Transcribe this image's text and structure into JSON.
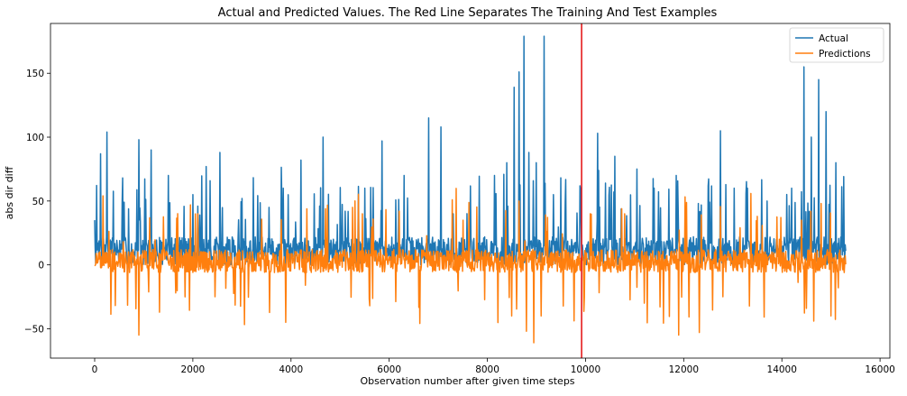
{
  "chart_data": {
    "type": "line",
    "title": "Actual and Predicted Values. The Red Line Separates The Training And Test Examples",
    "xlabel": "Observation number after given time steps",
    "ylabel": "abs dir diff",
    "xlim": [
      -900,
      16200
    ],
    "ylim": [
      -73,
      189
    ],
    "xticks": [
      {
        "value": 0,
        "label": "0"
      },
      {
        "value": 2000,
        "label": "2000"
      },
      {
        "value": 4000,
        "label": "4000"
      },
      {
        "value": 6000,
        "label": "6000"
      },
      {
        "value": 8000,
        "label": "8000"
      },
      {
        "value": 10000,
        "label": "10000"
      },
      {
        "value": 12000,
        "label": "12000"
      },
      {
        "value": 14000,
        "label": "14000"
      },
      {
        "value": 16000,
        "label": "16000"
      }
    ],
    "yticks": [
      {
        "value": -50,
        "label": "−50"
      },
      {
        "value": 0,
        "label": "0"
      },
      {
        "value": 50,
        "label": "50"
      },
      {
        "value": 100,
        "label": "100"
      },
      {
        "value": 150,
        "label": "150"
      }
    ],
    "grid": false,
    "legend_position": "top-right",
    "split_line": {
      "x": 9920,
      "color": "#e41a1c"
    },
    "series": [
      {
        "name": "Actual",
        "color": "#1f77b4",
        "x_range": [
          0,
          15300
        ],
        "n_points": 1530,
        "baseline_range": [
          0,
          22
        ],
        "peaks": [
          {
            "x": 0,
            "y": 35
          },
          {
            "x": 120,
            "y": 87
          },
          {
            "x": 250,
            "y": 104
          },
          {
            "x": 560,
            "y": 50
          },
          {
            "x": 900,
            "y": 98
          },
          {
            "x": 1150,
            "y": 90
          },
          {
            "x": 1500,
            "y": 70
          },
          {
            "x": 2000,
            "y": 55
          },
          {
            "x": 2550,
            "y": 88
          },
          {
            "x": 3000,
            "y": 52
          },
          {
            "x": 3550,
            "y": 45
          },
          {
            "x": 4200,
            "y": 82
          },
          {
            "x": 4650,
            "y": 100
          },
          {
            "x": 5100,
            "y": 42
          },
          {
            "x": 5500,
            "y": 60
          },
          {
            "x": 5850,
            "y": 97
          },
          {
            "x": 6300,
            "y": 70
          },
          {
            "x": 6800,
            "y": 115
          },
          {
            "x": 7050,
            "y": 108
          },
          {
            "x": 7300,
            "y": 40
          },
          {
            "x": 8150,
            "y": 70
          },
          {
            "x": 8400,
            "y": 80
          },
          {
            "x": 8550,
            "y": 139
          },
          {
            "x": 8650,
            "y": 151
          },
          {
            "x": 8750,
            "y": 179
          },
          {
            "x": 8850,
            "y": 88
          },
          {
            "x": 9000,
            "y": 80
          },
          {
            "x": 9160,
            "y": 179
          },
          {
            "x": 9350,
            "y": 55
          },
          {
            "x": 9900,
            "y": 60
          },
          {
            "x": 10250,
            "y": 103
          },
          {
            "x": 10600,
            "y": 85
          },
          {
            "x": 11050,
            "y": 75
          },
          {
            "x": 11400,
            "y": 60
          },
          {
            "x": 11850,
            "y": 70
          },
          {
            "x": 12300,
            "y": 48
          },
          {
            "x": 12750,
            "y": 105
          },
          {
            "x": 13300,
            "y": 60
          },
          {
            "x": 13700,
            "y": 50
          },
          {
            "x": 14200,
            "y": 60
          },
          {
            "x": 14450,
            "y": 155
          },
          {
            "x": 14600,
            "y": 100
          },
          {
            "x": 14750,
            "y": 145
          },
          {
            "x": 14900,
            "y": 120
          },
          {
            "x": 15100,
            "y": 80
          }
        ]
      },
      {
        "name": "Predictions",
        "color": "#ff7f0e",
        "x_range": [
          0,
          15300
        ],
        "n_points": 1530,
        "baseline_range": [
          -6,
          12
        ],
        "peaks": [
          {
            "x": 900,
            "y": -55
          },
          {
            "x": 1950,
            "y": 47
          },
          {
            "x": 1650,
            "y": -22
          },
          {
            "x": 2100,
            "y": 40
          },
          {
            "x": 2450,
            "y": -25
          },
          {
            "x": 4700,
            "y": 44
          },
          {
            "x": 5250,
            "y": 45
          },
          {
            "x": 5450,
            "y": 40
          },
          {
            "x": 5600,
            "y": -32
          },
          {
            "x": 6200,
            "y": 42
          },
          {
            "x": 7500,
            "y": 35
          },
          {
            "x": 8500,
            "y": -40
          },
          {
            "x": 8650,
            "y": 50
          },
          {
            "x": 8800,
            "y": -52
          },
          {
            "x": 8950,
            "y": -61
          },
          {
            "x": 9100,
            "y": -40
          },
          {
            "x": 10100,
            "y": 40
          },
          {
            "x": 10800,
            "y": 40
          },
          {
            "x": 11200,
            "y": -30
          },
          {
            "x": 11900,
            "y": -55
          },
          {
            "x": 12800,
            "y": -25
          },
          {
            "x": 13500,
            "y": 38
          },
          {
            "x": 14400,
            "y": 35
          },
          {
            "x": 14650,
            "y": -44
          },
          {
            "x": 14800,
            "y": 48
          },
          {
            "x": 15000,
            "y": -40
          }
        ]
      }
    ]
  }
}
